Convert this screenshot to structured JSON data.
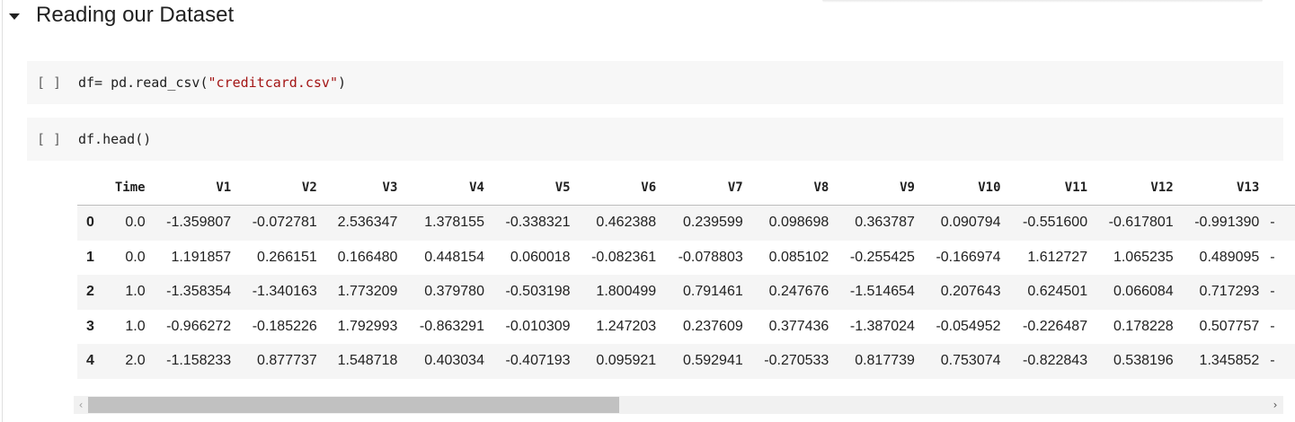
{
  "section": {
    "title": "Reading our Dataset",
    "caret_icon": "caret-down-icon"
  },
  "cells": [
    {
      "run_indicator": "[ ]",
      "code_prefix": "df= pd.read_csv(",
      "code_string": "\"creditcard.csv\"",
      "code_suffix": ")"
    },
    {
      "run_indicator": "[ ]",
      "code_prefix": "df.head()",
      "code_string": "",
      "code_suffix": ""
    }
  ],
  "table": {
    "columns": [
      "",
      "Time",
      "V1",
      "V2",
      "V3",
      "V4",
      "V5",
      "V6",
      "V7",
      "V8",
      "V9",
      "V10",
      "V11",
      "V12",
      "V13"
    ],
    "rows": [
      {
        "index": "0",
        "cells": [
          "0.0",
          "-1.359807",
          "-0.072781",
          "2.536347",
          "1.378155",
          "-0.338321",
          "0.462388",
          "0.239599",
          "0.098698",
          "0.363787",
          "0.090794",
          "-0.551600",
          "-0.617801",
          "-0.991390"
        ]
      },
      {
        "index": "1",
        "cells": [
          "0.0",
          "1.191857",
          "0.266151",
          "0.166480",
          "0.448154",
          "0.060018",
          "-0.082361",
          "-0.078803",
          "0.085102",
          "-0.255425",
          "-0.166974",
          "1.612727",
          "1.065235",
          "0.489095"
        ]
      },
      {
        "index": "2",
        "cells": [
          "1.0",
          "-1.358354",
          "-1.340163",
          "1.773209",
          "0.379780",
          "-0.503198",
          "1.800499",
          "0.791461",
          "0.247676",
          "-1.514654",
          "0.207643",
          "0.624501",
          "0.066084",
          "0.717293"
        ]
      },
      {
        "index": "3",
        "cells": [
          "1.0",
          "-0.966272",
          "-0.185226",
          "1.792993",
          "-0.863291",
          "-0.010309",
          "1.247203",
          "0.237609",
          "0.377436",
          "-1.387024",
          "-0.054952",
          "-0.226487",
          "0.178228",
          "0.507757"
        ]
      },
      {
        "index": "4",
        "cells": [
          "2.0",
          "-1.158233",
          "0.877737",
          "1.548718",
          "0.403034",
          "-0.407193",
          "0.095921",
          "0.592941",
          "-0.270533",
          "0.817739",
          "0.753074",
          "-0.822843",
          "0.538196",
          "1.345852"
        ]
      }
    ],
    "truncation_mark": "-"
  },
  "scrollbar": {
    "left_arrow": "‹",
    "right_arrow": "›",
    "thumb_fraction": 0.45
  }
}
